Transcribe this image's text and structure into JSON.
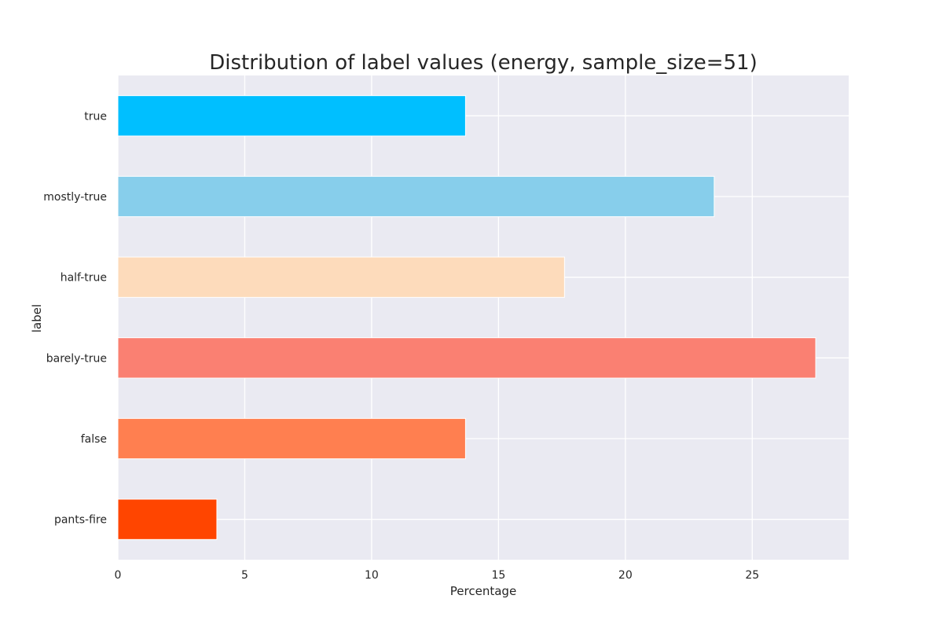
{
  "chart_data": {
    "type": "bar",
    "orientation": "horizontal",
    "title": "Distribution of label values (energy, sample_size=51)",
    "xlabel": "Percentage",
    "ylabel": "label",
    "xlim": [
      0,
      28.8
    ],
    "xticks": [
      0,
      5,
      10,
      15,
      20,
      25
    ],
    "grid": true,
    "categories": [
      "true",
      "mostly-true",
      "half-true",
      "barely-true",
      "false",
      "pants-fire"
    ],
    "values": [
      13.7,
      23.5,
      17.6,
      27.5,
      13.7,
      3.9
    ],
    "colors": [
      "#00bfff",
      "#87ceeb",
      "#fddbbb",
      "#fa8072",
      "#ff7f50",
      "#ff4500"
    ],
    "background_color": "#eaeaf2",
    "grid_color": "#ffffff"
  }
}
